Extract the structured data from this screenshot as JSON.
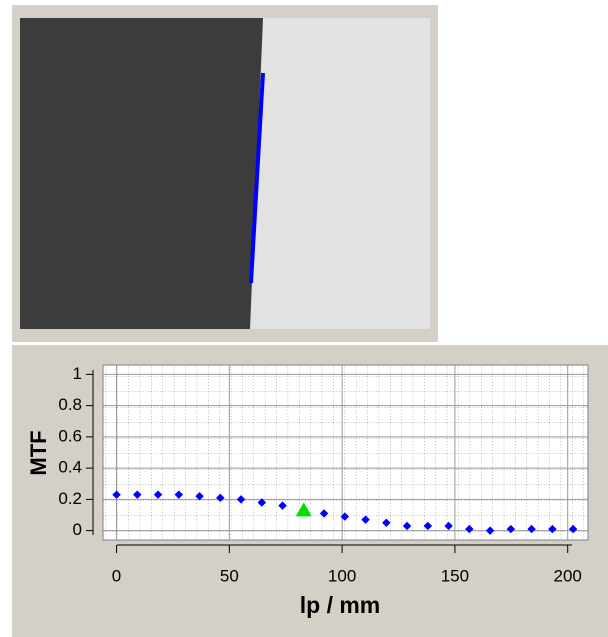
{
  "chart_data": {
    "type": "scatter",
    "xlabel": "lp / mm",
    "ylabel": "MTF",
    "x": [
      0,
      9.2,
      18.4,
      27.6,
      36.8,
      46,
      55.2,
      64.4,
      73.6,
      92,
      101.2,
      110.4,
      119.6,
      128.8,
      138,
      147.2,
      156.4,
      165.6,
      174.8,
      184,
      193.2,
      202.4
    ],
    "values": [
      0.23,
      0.23,
      0.23,
      0.23,
      0.22,
      0.21,
      0.2,
      0.18,
      0.16,
      0.11,
      0.09,
      0.07,
      0.05,
      0.03,
      0.03,
      0.03,
      0.01,
      0,
      0.01,
      0.01,
      0.01,
      0.01
    ],
    "color": "#0000ff",
    "highlight": {
      "x": 83,
      "y": 0.13,
      "color": "#00dd00"
    },
    "xlim": [
      -6,
      209
    ],
    "ylim": [
      -0.06,
      1.06
    ],
    "xticks": [
      0,
      50,
      100,
      150,
      200
    ],
    "yticks": [
      0,
      0.2,
      0.4,
      0.6,
      0.8,
      1
    ],
    "grid": true
  }
}
